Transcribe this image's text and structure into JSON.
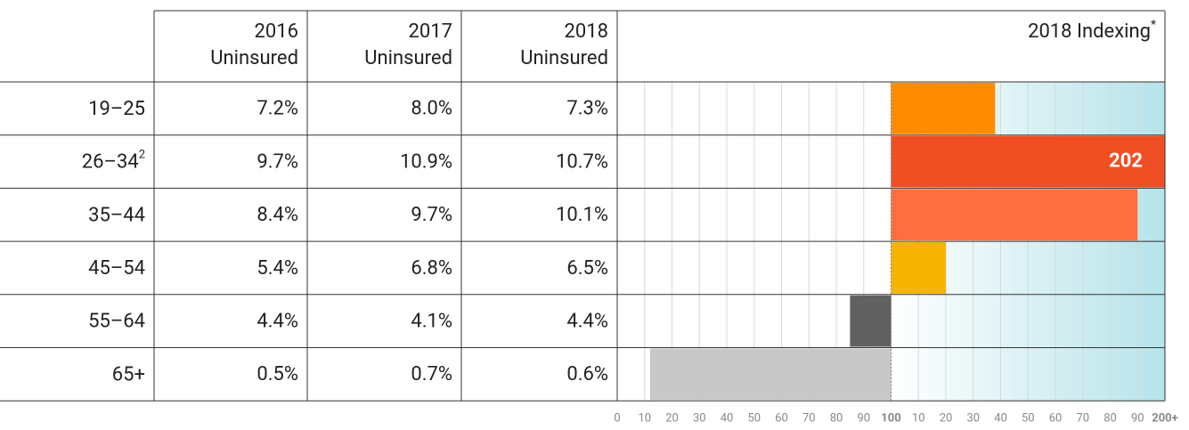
{
  "table": {
    "columns": [
      [
        "2016",
        "Uninsured"
      ],
      [
        "2017",
        "Uninsured"
      ],
      [
        "2018",
        "Uninsured"
      ]
    ],
    "rows": [
      {
        "label": "19–25",
        "cells": [
          "7.2%",
          "8.0%",
          "7.3%"
        ]
      },
      {
        "label": "26–34",
        "note": "2",
        "cells": [
          "9.7%",
          "10.9%",
          "10.7%"
        ]
      },
      {
        "label": "35–44",
        "cells": [
          "8.4%",
          "9.7%",
          "10.1%"
        ]
      },
      {
        "label": "45–54",
        "cells": [
          "5.4%",
          "6.8%",
          "6.5%"
        ]
      },
      {
        "label": "55–64",
        "cells": [
          "4.4%",
          "4.1%",
          "4.4%"
        ]
      },
      {
        "label": "65+",
        "cells": [
          "0.5%",
          "0.7%",
          "0.6%"
        ]
      }
    ]
  },
  "chart_data": {
    "type": "bar",
    "orientation": "horizontal",
    "title": "2018 Indexing",
    "title_note": "*",
    "values": [
      138,
      202,
      190,
      120,
      85,
      12
    ],
    "value_labels": [
      null,
      "202",
      null,
      null,
      null,
      null
    ],
    "colors": [
      "#ff8c00",
      "#f04e23",
      "#ff6e40",
      "#f5b400",
      "#606060",
      "#c8c8c8"
    ],
    "baseline": 100,
    "xlim": [
      0,
      200
    ],
    "xticks": [
      0,
      10,
      20,
      30,
      40,
      50,
      60,
      70,
      80,
      90,
      100,
      {
        "value": 110,
        "label": "10"
      },
      {
        "value": 120,
        "label": "20"
      },
      {
        "value": 130,
        "label": "30"
      },
      {
        "value": 140,
        "label": "40"
      },
      {
        "value": 150,
        "label": "50"
      },
      {
        "value": 160,
        "label": "60"
      },
      {
        "value": 170,
        "label": "70"
      },
      {
        "value": 180,
        "label": "80"
      },
      {
        "value": 190,
        "label": "90"
      },
      {
        "value": 200,
        "label": "200+"
      }
    ],
    "grid": true,
    "gradient": [
      "#ffffff",
      "#b6e3ea"
    ]
  }
}
